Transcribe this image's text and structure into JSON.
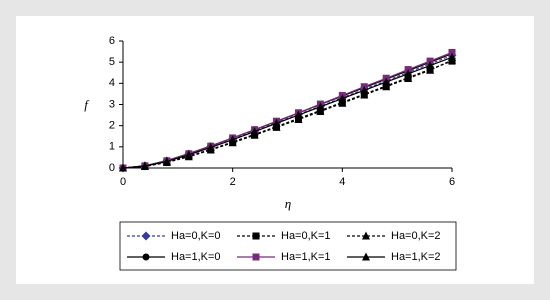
{
  "chart_data": {
    "type": "line",
    "x_label": "η",
    "y_label": "f",
    "x": [
      0,
      0.4,
      0.8,
      1.2,
      1.6,
      2.0,
      2.4,
      2.8,
      3.2,
      3.6,
      4.0,
      4.4,
      4.8,
      5.2,
      5.6,
      6.0
    ],
    "xlim": [
      0,
      6
    ],
    "xticks": [
      0,
      2,
      4,
      6
    ],
    "ylim": [
      0,
      6
    ],
    "yticks": [
      0,
      1,
      2,
      3,
      4,
      5,
      6
    ],
    "series": [
      {
        "name": "Ha=0,K=0",
        "color": "#3a3a9a",
        "line_style": "dashed",
        "marker": "diamond",
        "values": [
          0,
          0.1,
          0.33,
          0.65,
          1.0,
          1.37,
          1.75,
          2.14,
          2.53,
          2.92,
          3.32,
          3.72,
          4.12,
          4.52,
          4.92,
          5.32
        ]
      },
      {
        "name": "Ha=0,K=1",
        "color": "#000000",
        "line_style": "dashed",
        "marker": "square",
        "values": [
          0,
          0.08,
          0.28,
          0.56,
          0.88,
          1.23,
          1.59,
          1.96,
          2.34,
          2.72,
          3.1,
          3.49,
          3.88,
          4.27,
          4.66,
          5.05
        ]
      },
      {
        "name": "Ha=0,K=2",
        "color": "#000000",
        "line_style": "dashed",
        "marker": "triangle",
        "values": [
          0,
          0.07,
          0.26,
          0.53,
          0.85,
          1.19,
          1.55,
          1.92,
          2.29,
          2.67,
          3.06,
          3.45,
          3.84,
          4.23,
          4.62,
          5.1
        ]
      },
      {
        "name": "Ha=1,K=0",
        "color": "#000000",
        "line_style": "solid",
        "marker": "circle",
        "values": [
          0,
          0.11,
          0.35,
          0.68,
          1.04,
          1.42,
          1.81,
          2.2,
          2.6,
          3.0,
          3.4,
          3.8,
          4.2,
          4.6,
          5.0,
          5.4
        ]
      },
      {
        "name": "Ha=1,K=1",
        "color": "#7a2a7a",
        "line_style": "solid",
        "marker": "square",
        "values": [
          0,
          0.1,
          0.34,
          0.67,
          1.03,
          1.42,
          1.81,
          2.21,
          2.61,
          3.02,
          3.43,
          3.84,
          4.24,
          4.65,
          5.05,
          5.46
        ]
      },
      {
        "name": "Ha=1,K=2",
        "color": "#000000",
        "line_style": "solid",
        "marker": "triangle",
        "values": [
          0,
          0.09,
          0.31,
          0.62,
          0.97,
          1.34,
          1.72,
          2.11,
          2.5,
          2.89,
          3.28,
          3.67,
          4.06,
          4.45,
          4.84,
          5.23
        ]
      }
    ]
  }
}
